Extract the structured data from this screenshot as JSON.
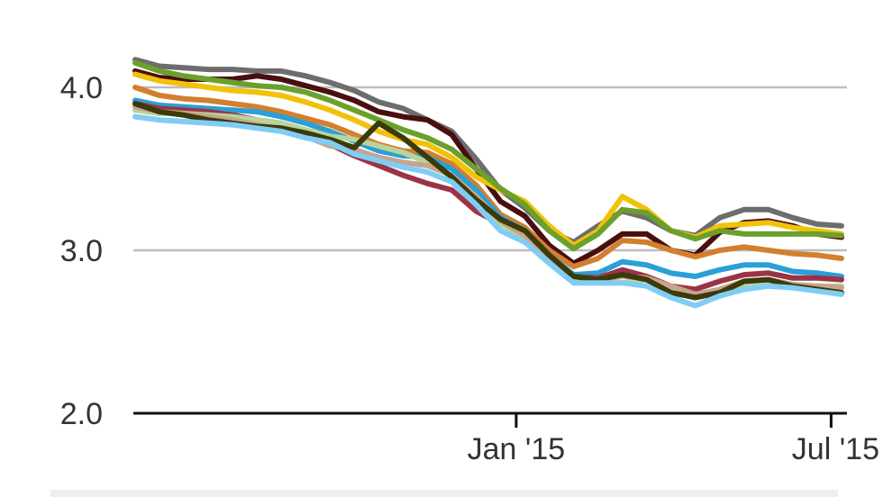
{
  "chart_data": {
    "type": "line",
    "title": "",
    "xlabel": "",
    "ylabel": "",
    "ylim": [
      2.0,
      4.3
    ],
    "xlim": [
      "2014-05-27",
      "2015-07-07"
    ],
    "grid": true,
    "yticks": [
      {
        "value": 4.0,
        "label": "4.0"
      },
      {
        "value": 3.0,
        "label": "3.0"
      },
      {
        "value": 2.0,
        "label": "2.0"
      }
    ],
    "xticks": [
      {
        "value": "2015-01-01",
        "label": "Jan '15"
      },
      {
        "value": "2015-07-01",
        "label": "Jul '15"
      }
    ],
    "x": [
      "2014-05-27",
      "2014-06-10",
      "2014-06-24",
      "2014-07-08",
      "2014-07-22",
      "2014-08-05",
      "2014-08-19",
      "2014-09-02",
      "2014-09-16",
      "2014-09-30",
      "2014-10-14",
      "2014-10-28",
      "2014-11-11",
      "2014-11-25",
      "2014-12-09",
      "2014-12-23",
      "2015-01-06",
      "2015-01-20",
      "2015-02-03",
      "2015-02-17",
      "2015-03-03",
      "2015-03-17",
      "2015-03-31",
      "2015-04-14",
      "2015-04-28",
      "2015-05-12",
      "2015-05-26",
      "2015-06-09",
      "2015-06-23",
      "2015-07-07"
    ],
    "series": [
      {
        "color": "#6d6d6d",
        "values": [
          4.17,
          4.13,
          4.12,
          4.11,
          4.11,
          4.1,
          4.1,
          4.07,
          4.03,
          3.98,
          3.91,
          3.87,
          3.8,
          3.73,
          3.56,
          3.37,
          3.26,
          3.12,
          3.05,
          3.15,
          3.24,
          3.2,
          3.12,
          3.09,
          3.2,
          3.25,
          3.25,
          3.2,
          3.16,
          3.15
        ]
      },
      {
        "color": "#4a0e0e",
        "values": [
          4.1,
          4.06,
          4.05,
          4.05,
          4.05,
          4.07,
          4.05,
          4.01,
          3.97,
          3.92,
          3.85,
          3.82,
          3.8,
          3.71,
          3.5,
          3.3,
          3.21,
          3.03,
          2.92,
          3.0,
          3.1,
          3.1,
          3.0,
          2.97,
          3.11,
          3.17,
          3.18,
          3.15,
          3.1,
          3.08
        ]
      },
      {
        "color": "#f2c20a",
        "values": [
          4.08,
          4.04,
          4.02,
          4.0,
          3.98,
          3.97,
          3.95,
          3.91,
          3.86,
          3.8,
          3.73,
          3.68,
          3.65,
          3.57,
          3.45,
          3.37,
          3.3,
          3.15,
          3.03,
          3.12,
          3.33,
          3.25,
          3.12,
          3.08,
          3.15,
          3.16,
          3.17,
          3.14,
          3.12,
          3.1
        ]
      },
      {
        "color": "#6aa02b",
        "values": [
          4.15,
          4.1,
          4.07,
          4.05,
          4.03,
          4.01,
          4.0,
          3.97,
          3.92,
          3.86,
          3.8,
          3.74,
          3.69,
          3.62,
          3.5,
          3.38,
          3.28,
          3.12,
          3.01,
          3.1,
          3.25,
          3.23,
          3.12,
          3.07,
          3.12,
          3.1,
          3.1,
          3.1,
          3.1,
          3.09
        ]
      },
      {
        "color": "#d47f2e",
        "values": [
          4.0,
          3.95,
          3.93,
          3.92,
          3.9,
          3.88,
          3.85,
          3.81,
          3.77,
          3.71,
          3.65,
          3.61,
          3.6,
          3.53,
          3.4,
          3.22,
          3.14,
          3.0,
          2.9,
          2.95,
          3.06,
          3.05,
          3.0,
          2.96,
          3.0,
          3.02,
          3.0,
          2.98,
          2.97,
          2.95
        ]
      },
      {
        "color": "#2a9fd8",
        "values": [
          3.92,
          3.89,
          3.88,
          3.87,
          3.86,
          3.85,
          3.82,
          3.78,
          3.73,
          3.67,
          3.61,
          3.58,
          3.57,
          3.5,
          3.37,
          3.2,
          3.12,
          2.97,
          2.85,
          2.86,
          2.93,
          2.91,
          2.86,
          2.84,
          2.88,
          2.91,
          2.91,
          2.87,
          2.86,
          2.84
        ]
      },
      {
        "color": "#9b3347",
        "values": [
          3.9,
          3.87,
          3.86,
          3.85,
          3.83,
          3.8,
          3.78,
          3.72,
          3.65,
          3.58,
          3.52,
          3.46,
          3.41,
          3.37,
          3.24,
          3.16,
          3.1,
          2.95,
          2.84,
          2.83,
          2.88,
          2.84,
          2.78,
          2.76,
          2.81,
          2.85,
          2.86,
          2.83,
          2.83,
          2.82
        ]
      },
      {
        "color": "#b8d49a",
        "values": [
          3.86,
          3.84,
          3.84,
          3.83,
          3.82,
          3.8,
          3.78,
          3.74,
          3.7,
          3.68,
          3.64,
          3.6,
          3.54,
          3.45,
          3.3,
          3.16,
          3.08,
          2.95,
          2.82,
          2.8,
          2.8,
          2.82,
          2.76,
          2.73,
          2.75,
          2.79,
          2.8,
          2.78,
          2.78,
          2.78
        ]
      },
      {
        "color": "#c6a58a",
        "values": [
          3.88,
          3.85,
          3.84,
          3.82,
          3.8,
          3.77,
          3.74,
          3.7,
          3.64,
          3.62,
          3.57,
          3.54,
          3.52,
          3.46,
          3.33,
          3.18,
          3.09,
          2.95,
          2.84,
          2.82,
          2.84,
          2.83,
          2.78,
          2.73,
          2.76,
          2.81,
          2.82,
          2.79,
          2.78,
          2.77
        ]
      },
      {
        "color": "#3b3a0a",
        "values": [
          3.9,
          3.85,
          3.83,
          3.8,
          3.78,
          3.76,
          3.75,
          3.72,
          3.68,
          3.63,
          3.78,
          3.69,
          3.57,
          3.45,
          3.31,
          3.19,
          3.12,
          2.97,
          2.84,
          2.82,
          2.85,
          2.82,
          2.74,
          2.71,
          2.74,
          2.81,
          2.82,
          2.78,
          2.76,
          2.74
        ]
      },
      {
        "color": "#7fcdf5",
        "values": [
          3.82,
          3.8,
          3.79,
          3.78,
          3.77,
          3.75,
          3.73,
          3.69,
          3.66,
          3.59,
          3.55,
          3.51,
          3.48,
          3.42,
          3.28,
          3.12,
          3.05,
          2.92,
          2.8,
          2.8,
          2.8,
          2.78,
          2.71,
          2.66,
          2.72,
          2.76,
          2.78,
          2.77,
          2.75,
          2.73
        ]
      }
    ]
  }
}
